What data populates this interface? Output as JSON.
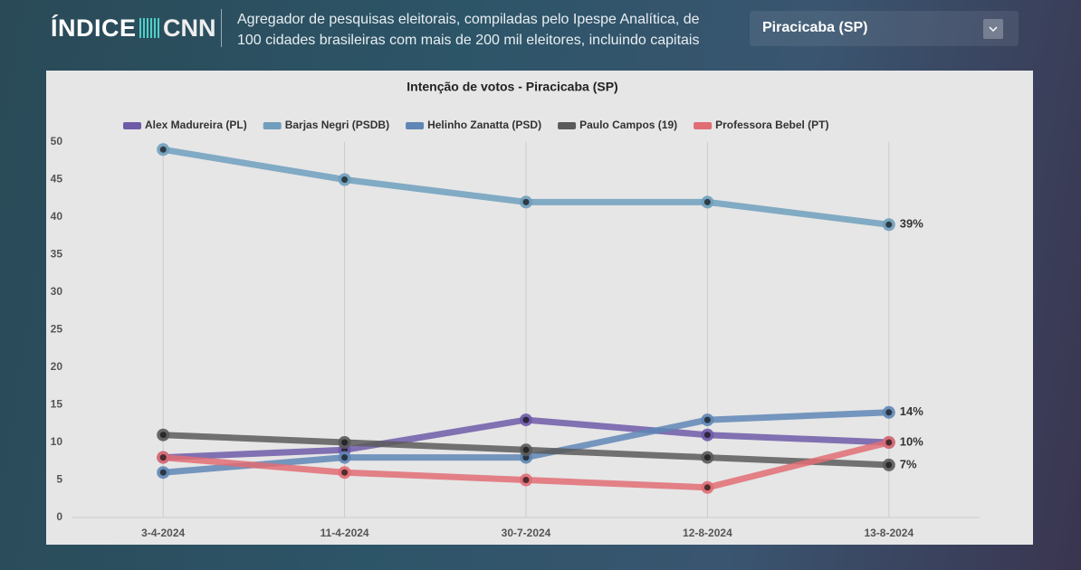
{
  "header": {
    "logo": "ÍNDICE",
    "logo_brand": "CNN",
    "description": [
      "Agregador de pesquisas eleitorais, compiladas pelo Ipespe Analítica, de",
      "100 cidades brasileiras com mais de 200 mil eleitores, incluindo capitais"
    ],
    "selector": "Piracicaba (SP)"
  },
  "chart_data": {
    "type": "line",
    "title": "Intenção de votos - Piracicaba (SP)",
    "categories": [
      "3-4-2024",
      "11-4-2024",
      "30-7-2024",
      "12-8-2024",
      "13-8-2024"
    ],
    "series": [
      {
        "name": "Alex Madureira (PL)",
        "color": "#6f5aa8",
        "values": [
          8,
          9,
          13,
          11,
          10
        ],
        "value_labels": [
          null,
          null,
          null,
          null,
          "10%"
        ]
      },
      {
        "name": "Barjas Negri (PSDB)",
        "color": "#6f9fbd",
        "values": [
          49,
          45,
          42,
          42,
          39
        ],
        "value_labels": [
          null,
          null,
          null,
          null,
          "39%"
        ]
      },
      {
        "name": "Helinho Zanatta (PSD)",
        "color": "#5f86b5",
        "values": [
          6,
          8,
          8,
          13,
          14
        ],
        "value_labels": [
          null,
          null,
          null,
          null,
          "14%"
        ]
      },
      {
        "name": "Paulo Campos (19)",
        "color": "#5a5a5a",
        "values": [
          11,
          10,
          9,
          8,
          7
        ],
        "value_labels": [
          null,
          null,
          null,
          null,
          "7%"
        ]
      },
      {
        "name": "Professora Bebel (PT)",
        "color": "#e06d74",
        "values": [
          8,
          6,
          5,
          4,
          10
        ]
      }
    ],
    "ylim": [
      0,
      50
    ],
    "yticks": [
      0,
      5,
      10,
      15,
      20,
      25,
      30,
      35,
      40,
      45,
      50
    ],
    "grid": true
  }
}
